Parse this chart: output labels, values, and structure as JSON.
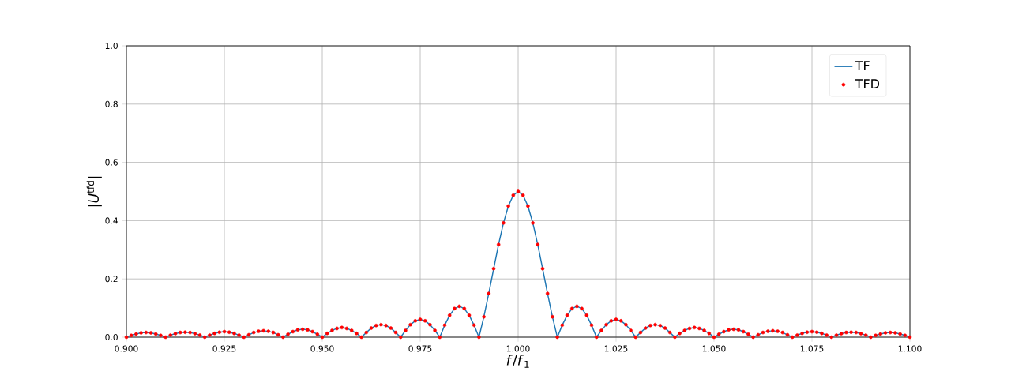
{
  "chart_data": {
    "type": "line",
    "xlabel": "*f*/*f*$_{1}$",
    "ylabel": "|*U*$^{tfd}$|",
    "x": [
      0.9,
      0.90125,
      0.9025,
      0.90375,
      0.905,
      0.90625,
      0.9075,
      0.90875,
      0.91,
      0.91125,
      0.9125,
      0.91375,
      0.915,
      0.91625,
      0.9175,
      0.91875,
      0.92,
      0.92125,
      0.9225,
      0.92375,
      0.925,
      0.92625,
      0.9275,
      0.92875,
      0.93,
      0.93125,
      0.9325,
      0.93375,
      0.935,
      0.93625,
      0.9375,
      0.93875,
      0.94,
      0.94125,
      0.9425,
      0.94375,
      0.945,
      0.94625,
      0.9475,
      0.94875,
      0.95,
      0.95125,
      0.9525,
      0.95375,
      0.955,
      0.95625,
      0.9575,
      0.95875,
      0.96,
      0.96125,
      0.9625,
      0.96375,
      0.965,
      0.96625,
      0.9675,
      0.96875,
      0.97,
      0.97125,
      0.9725,
      0.97375,
      0.975,
      0.97625,
      0.9775,
      0.97875,
      0.98,
      0.98125,
      0.9825,
      0.98375,
      0.985,
      0.98625,
      0.9875,
      0.98875,
      0.99,
      0.99125,
      0.9925,
      0.99375,
      0.995,
      0.99625,
      0.9975,
      0.99875,
      1.0,
      1.00125,
      1.0025,
      1.00375,
      1.005,
      1.00625,
      1.0075,
      1.00875,
      1.01,
      1.01125,
      1.0125,
      1.01375,
      1.015,
      1.01625,
      1.0175,
      1.01875,
      1.02,
      1.02125,
      1.0225,
      1.02375,
      1.025,
      1.02625,
      1.0275,
      1.02875,
      1.03,
      1.03125,
      1.0325,
      1.03375,
      1.035,
      1.03625,
      1.0375,
      1.03875,
      1.04,
      1.04125,
      1.0425,
      1.04375,
      1.045,
      1.04625,
      1.0475,
      1.04875,
      1.05,
      1.05125,
      1.0525,
      1.05375,
      1.055,
      1.05625,
      1.0575,
      1.05875,
      1.06,
      1.06125,
      1.0625,
      1.06375,
      1.065,
      1.06625,
      1.0675,
      1.06875,
      1.07,
      1.07125,
      1.0725,
      1.07375,
      1.075,
      1.07625,
      1.0775,
      1.07875,
      1.08,
      1.08125,
      1.0825,
      1.08375,
      1.085,
      1.08625,
      1.0875,
      1.08875,
      1.09,
      1.09125,
      1.0925,
      1.09375,
      1.095,
      1.09625,
      1.0975,
      1.09875,
      1.1
    ],
    "series": [
      {
        "name": "TF",
        "color": "#1f77b4",
        "marker": "none",
        "values": [
          0,
          0.006,
          0.011,
          0.015,
          0.016,
          0.015,
          0.011,
          0.006,
          0,
          0.007,
          0.012,
          0.016,
          0.017,
          0.016,
          0.012,
          0.007,
          0,
          0.007,
          0.013,
          0.017,
          0.019,
          0.017,
          0.013,
          0.007,
          0,
          0.008,
          0.016,
          0.02,
          0.022,
          0.02,
          0.016,
          0.008,
          0,
          0.01,
          0.019,
          0.025,
          0.027,
          0.025,
          0.019,
          0.01,
          0,
          0.013,
          0.023,
          0.03,
          0.033,
          0.03,
          0.023,
          0.013,
          0,
          0.016,
          0.031,
          0.04,
          0.043,
          0.04,
          0.031,
          0.016,
          0,
          0.023,
          0.043,
          0.056,
          0.061,
          0.056,
          0.043,
          0.023,
          0,
          0.041,
          0.075,
          0.098,
          0.106,
          0.098,
          0.075,
          0.041,
          0,
          0.07,
          0.15,
          0.235,
          0.318,
          0.392,
          0.45,
          0.487,
          0.5,
          0.487,
          0.45,
          0.392,
          0.318,
          0.235,
          0.15,
          0.07,
          0,
          0.041,
          0.075,
          0.098,
          0.106,
          0.098,
          0.075,
          0.041,
          0,
          0.023,
          0.043,
          0.056,
          0.061,
          0.056,
          0.043,
          0.023,
          0,
          0.016,
          0.031,
          0.04,
          0.043,
          0.04,
          0.031,
          0.016,
          0,
          0.013,
          0.023,
          0.03,
          0.033,
          0.03,
          0.023,
          0.013,
          0,
          0.01,
          0.019,
          0.025,
          0.027,
          0.025,
          0.019,
          0.01,
          0,
          0.008,
          0.016,
          0.02,
          0.022,
          0.02,
          0.016,
          0.008,
          0,
          0.007,
          0.013,
          0.017,
          0.019,
          0.017,
          0.013,
          0.007,
          0,
          0.007,
          0.012,
          0.016,
          0.017,
          0.016,
          0.012,
          0.007,
          0,
          0.006,
          0.011,
          0.015,
          0.016,
          0.015,
          0.011,
          0.006,
          0
        ]
      },
      {
        "name": "TFD",
        "type": "scatter",
        "color": "#ff0000",
        "marker": "circle",
        "values": [
          0,
          0.006,
          0.011,
          0.015,
          0.016,
          0.015,
          0.011,
          0.006,
          0,
          0.007,
          0.012,
          0.016,
          0.017,
          0.016,
          0.012,
          0.007,
          0,
          0.007,
          0.013,
          0.017,
          0.019,
          0.017,
          0.013,
          0.007,
          0,
          0.008,
          0.016,
          0.02,
          0.022,
          0.02,
          0.016,
          0.008,
          0,
          0.01,
          0.019,
          0.025,
          0.027,
          0.025,
          0.019,
          0.01,
          0,
          0.013,
          0.023,
          0.03,
          0.033,
          0.03,
          0.023,
          0.013,
          0,
          0.016,
          0.031,
          0.04,
          0.043,
          0.04,
          0.031,
          0.016,
          0,
          0.023,
          0.043,
          0.056,
          0.061,
          0.056,
          0.043,
          0.023,
          0,
          0.041,
          0.075,
          0.098,
          0.106,
          0.098,
          0.075,
          0.041,
          0,
          0.07,
          0.15,
          0.235,
          0.318,
          0.392,
          0.45,
          0.487,
          0.5,
          0.487,
          0.45,
          0.392,
          0.318,
          0.235,
          0.15,
          0.07,
          0,
          0.041,
          0.075,
          0.098,
          0.106,
          0.098,
          0.075,
          0.041,
          0,
          0.023,
          0.043,
          0.056,
          0.061,
          0.056,
          0.043,
          0.023,
          0,
          0.016,
          0.031,
          0.04,
          0.043,
          0.04,
          0.031,
          0.016,
          0,
          0.013,
          0.023,
          0.03,
          0.033,
          0.03,
          0.023,
          0.013,
          0,
          0.01,
          0.019,
          0.025,
          0.027,
          0.025,
          0.019,
          0.01,
          0,
          0.008,
          0.016,
          0.02,
          0.022,
          0.02,
          0.016,
          0.008,
          0,
          0.007,
          0.013,
          0.017,
          0.019,
          0.017,
          0.013,
          0.007,
          0,
          0.007,
          0.012,
          0.016,
          0.017,
          0.016,
          0.012,
          0.007,
          0,
          0.006,
          0.011,
          0.015,
          0.016,
          0.015,
          0.011,
          0.006,
          0
        ]
      }
    ],
    "xlim": [
      0.9,
      1.1
    ],
    "xticks": [
      {
        "value": 0.9,
        "label": "0.900"
      },
      {
        "value": 0.925,
        "label": "0.925"
      },
      {
        "value": 0.95,
        "label": "0.950"
      },
      {
        "value": 0.975,
        "label": "0.975"
      },
      {
        "value": 1.0,
        "label": "1.000"
      },
      {
        "value": 1.025,
        "label": "1.025"
      },
      {
        "value": 1.05,
        "label": "1.050"
      },
      {
        "value": 1.075,
        "label": "1.075"
      },
      {
        "value": 1.1,
        "label": "1.100"
      }
    ],
    "ylim": [
      0,
      1
    ],
    "yticks": [
      {
        "value": 0,
        "label": "0.0"
      },
      {
        "value": 0.2,
        "label": "0.2"
      },
      {
        "value": 0.4,
        "label": "0.4"
      },
      {
        "value": 0.6,
        "label": "0.6"
      },
      {
        "value": 0.8,
        "label": "0.8"
      },
      {
        "value": 1,
        "label": "1.0"
      }
    ],
    "grid": true,
    "legend": "top right"
  }
}
